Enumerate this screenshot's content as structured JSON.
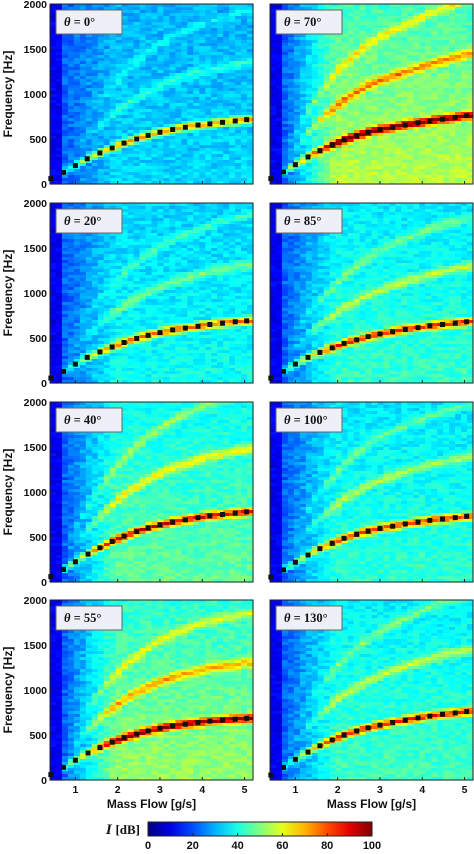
{
  "chart_data": {
    "type": "heatmap",
    "layout": "4x2 grid of spectrogram panels",
    "xlabel": "Mass Flow [g/s]",
    "ylabel": "Frequency [Hz]",
    "xlim": [
      0.4,
      5.2
    ],
    "ylim": [
      0,
      2000
    ],
    "xticks": [
      "1",
      "2",
      "3",
      "4",
      "5"
    ],
    "yticks": [
      "0",
      "500",
      "1000",
      "1500",
      "2000"
    ],
    "colorbar": {
      "label": "I [dB]",
      "label_symbol": "I",
      "label_unit": "[dB]",
      "ticks": [
        "0",
        "20",
        "40",
        "60",
        "80",
        "100"
      ],
      "range": [
        0,
        100
      ],
      "colormap": "jet"
    },
    "marker_color": "#111111",
    "panels": [
      {
        "label": "θ = 0°",
        "theta_text": "θ",
        "rest_text": " = 0°",
        "intensity": 0.35,
        "markers": [
          [
            0.42,
            60
          ],
          [
            0.72,
            130
          ],
          [
            1.0,
            205
          ],
          [
            1.28,
            280
          ],
          [
            1.58,
            345
          ],
          [
            1.87,
            400
          ],
          [
            2.15,
            455
          ],
          [
            2.45,
            500
          ],
          [
            2.72,
            540
          ],
          [
            3.0,
            575
          ],
          [
            3.3,
            605
          ],
          [
            3.6,
            630
          ],
          [
            3.9,
            655
          ],
          [
            4.18,
            668
          ],
          [
            4.48,
            685
          ],
          [
            4.78,
            700
          ],
          [
            5.05,
            715
          ]
        ]
      },
      {
        "label": "θ = 70°",
        "theta_text": "θ",
        "rest_text": " = 70°",
        "intensity": 1.0,
        "markers": [
          [
            0.42,
            60
          ],
          [
            0.72,
            135
          ],
          [
            1.0,
            215
          ],
          [
            1.3,
            300
          ],
          [
            1.58,
            370
          ],
          [
            1.87,
            435
          ],
          [
            2.15,
            490
          ],
          [
            2.45,
            535
          ],
          [
            2.72,
            575
          ],
          [
            3.0,
            605
          ],
          [
            3.3,
            630
          ],
          [
            3.6,
            655
          ],
          [
            3.9,
            680
          ],
          [
            4.18,
            700
          ],
          [
            4.48,
            720
          ],
          [
            4.78,
            740
          ],
          [
            5.05,
            760
          ]
        ]
      },
      {
        "label": "θ = 20°",
        "theta_text": "θ",
        "rest_text": " = 20°",
        "intensity": 0.5,
        "markers": [
          [
            0.42,
            55
          ],
          [
            0.72,
            130
          ],
          [
            1.0,
            210
          ],
          [
            1.28,
            285
          ],
          [
            1.58,
            345
          ],
          [
            1.87,
            400
          ],
          [
            2.15,
            450
          ],
          [
            2.45,
            495
          ],
          [
            2.72,
            530
          ],
          [
            3.0,
            560
          ],
          [
            3.3,
            590
          ],
          [
            3.6,
            610
          ],
          [
            3.9,
            630
          ],
          [
            4.18,
            650
          ],
          [
            4.48,
            665
          ],
          [
            4.78,
            680
          ],
          [
            5.05,
            690
          ]
        ]
      },
      {
        "label": "θ = 85°",
        "theta_text": "θ",
        "rest_text": " = 85°",
        "intensity": 0.62,
        "markers": [
          [
            0.42,
            55
          ],
          [
            0.72,
            130
          ],
          [
            1.0,
            210
          ],
          [
            1.3,
            285
          ],
          [
            1.58,
            340
          ],
          [
            1.87,
            390
          ],
          [
            2.15,
            440
          ],
          [
            2.45,
            480
          ],
          [
            2.72,
            515
          ],
          [
            3.0,
            545
          ],
          [
            3.3,
            570
          ],
          [
            3.6,
            595
          ],
          [
            3.9,
            615
          ],
          [
            4.18,
            635
          ],
          [
            4.48,
            650
          ],
          [
            4.78,
            665
          ],
          [
            5.05,
            680
          ]
        ]
      },
      {
        "label": "θ = 40°",
        "theta_text": "θ",
        "rest_text": " = 40°",
        "intensity": 0.75,
        "markers": [
          [
            0.42,
            60
          ],
          [
            0.72,
            140
          ],
          [
            1.0,
            225
          ],
          [
            1.3,
            310
          ],
          [
            1.58,
            380
          ],
          [
            1.87,
            450
          ],
          [
            2.15,
            510
          ],
          [
            2.45,
            560
          ],
          [
            2.72,
            600
          ],
          [
            3.0,
            635
          ],
          [
            3.3,
            665
          ],
          [
            3.6,
            690
          ],
          [
            3.9,
            715
          ],
          [
            4.18,
            735
          ],
          [
            4.48,
            750
          ],
          [
            4.78,
            765
          ],
          [
            5.05,
            780
          ]
        ]
      },
      {
        "label": "θ = 100°",
        "theta_text": "θ",
        "rest_text": " = 100°",
        "intensity": 0.6,
        "markers": [
          [
            0.42,
            55
          ],
          [
            0.72,
            135
          ],
          [
            1.0,
            220
          ],
          [
            1.3,
            300
          ],
          [
            1.58,
            370
          ],
          [
            1.87,
            430
          ],
          [
            2.15,
            485
          ],
          [
            2.45,
            530
          ],
          [
            2.72,
            565
          ],
          [
            3.0,
            595
          ],
          [
            3.3,
            620
          ],
          [
            3.6,
            645
          ],
          [
            3.9,
            665
          ],
          [
            4.18,
            685
          ],
          [
            4.48,
            700
          ],
          [
            4.78,
            715
          ],
          [
            5.05,
            730
          ]
        ]
      },
      {
        "label": "θ = 55°",
        "theta_text": "θ",
        "rest_text": " = 55°",
        "intensity": 0.9,
        "markers": [
          [
            0.42,
            60
          ],
          [
            0.72,
            140
          ],
          [
            1.0,
            220
          ],
          [
            1.3,
            300
          ],
          [
            1.58,
            360
          ],
          [
            1.87,
            420
          ],
          [
            2.15,
            470
          ],
          [
            2.45,
            510
          ],
          [
            2.72,
            545
          ],
          [
            3.0,
            575
          ],
          [
            3.3,
            600
          ],
          [
            3.6,
            620
          ],
          [
            3.9,
            640
          ],
          [
            4.18,
            655
          ],
          [
            4.48,
            665
          ],
          [
            4.78,
            675
          ],
          [
            5.05,
            685
          ]
        ]
      },
      {
        "label": "θ = 130°",
        "theta_text": "θ",
        "rest_text": " = 130°",
        "intensity": 0.65,
        "markers": [
          [
            0.42,
            55
          ],
          [
            0.72,
            140
          ],
          [
            1.0,
            230
          ],
          [
            1.3,
            310
          ],
          [
            1.58,
            380
          ],
          [
            1.87,
            445
          ],
          [
            2.15,
            500
          ],
          [
            2.45,
            545
          ],
          [
            2.72,
            580
          ],
          [
            3.0,
            610
          ],
          [
            3.3,
            640
          ],
          [
            3.6,
            665
          ],
          [
            3.9,
            690
          ],
          [
            4.18,
            710
          ],
          [
            4.48,
            730
          ],
          [
            4.78,
            745
          ],
          [
            5.05,
            760
          ]
        ]
      }
    ]
  }
}
